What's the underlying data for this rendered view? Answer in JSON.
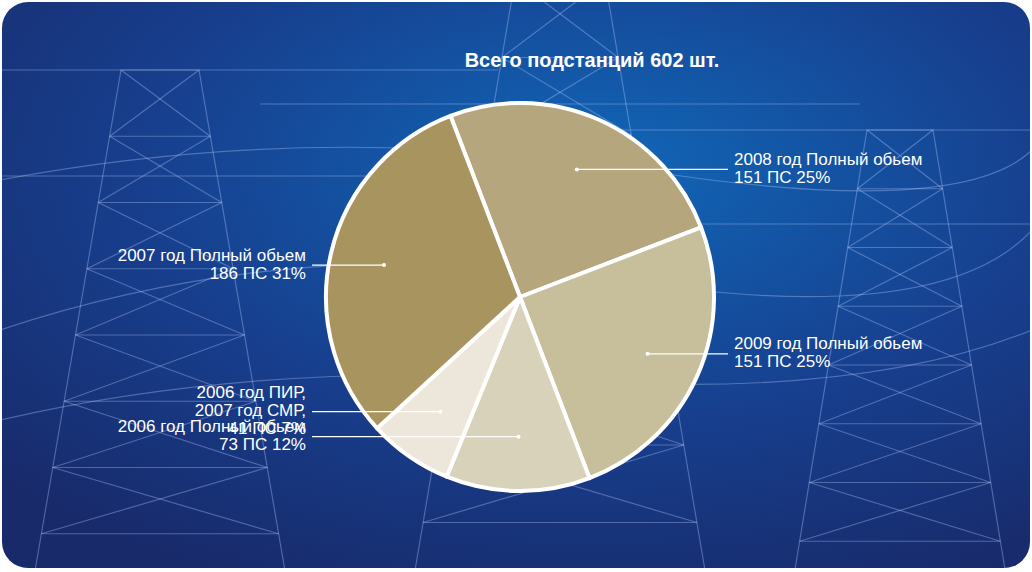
{
  "chart_data": {
    "type": "pie",
    "title": "Всего подстанций 602 шт.",
    "categories": [
      "2008 год Полный обьем",
      "2009 год Полный обьем",
      "2006 год Полный обьем",
      "2006 год ПИР, 2007 год СМР,",
      "2007 год Полный обьем"
    ],
    "values": [
      25,
      25,
      12,
      7,
      31
    ],
    "value_labels": [
      "151 ПС 25%",
      "151 ПС 25%",
      "73 ПС 12%",
      "41 ПС 7%",
      "186 ПС 31%"
    ],
    "colors": [
      "#b6a67d",
      "#c7be9c",
      "#d9d2ba",
      "#ece7da",
      "#a8945f"
    ],
    "data_labels": true
  }
}
